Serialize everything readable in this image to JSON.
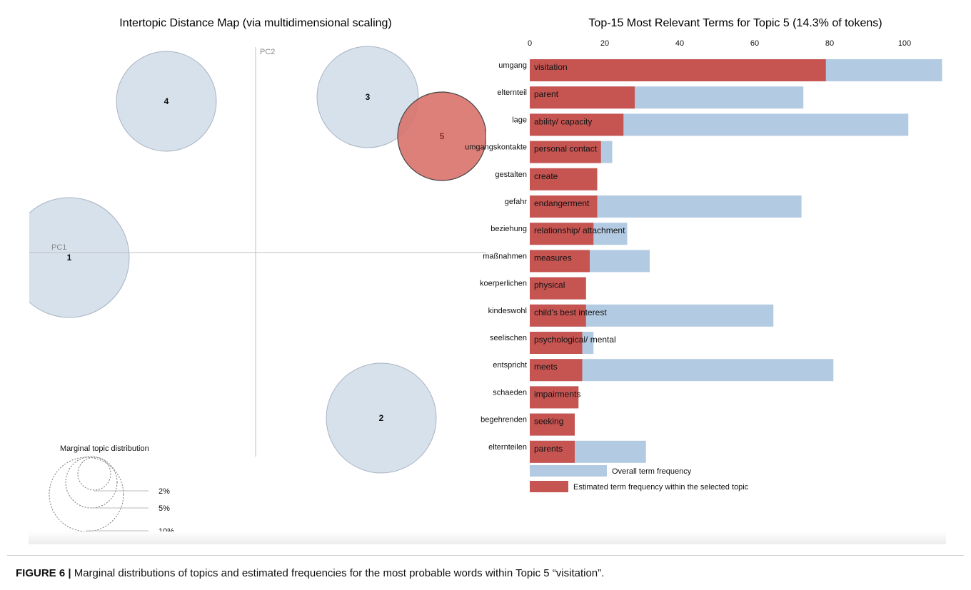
{
  "left_title": "Intertopic Distance Map (via multidimensional scaling)",
  "right_title": "Top-15 Most Relevant Terms for Topic 5 (14.3% of tokens)",
  "axes": {
    "pc1": "PC1",
    "pc2": "PC2"
  },
  "topics": [
    {
      "id": "1",
      "selected": false
    },
    {
      "id": "2",
      "selected": false
    },
    {
      "id": "3",
      "selected": false
    },
    {
      "id": "4",
      "selected": false
    },
    {
      "id": "5",
      "selected": true
    }
  ],
  "marginal": {
    "title": "Marginal topic distribution",
    "labels": [
      "2%",
      "5%",
      "10%"
    ]
  },
  "legend": {
    "overall": "Overall term frequency",
    "topic": "Estimated term frequency within the selected topic"
  },
  "colors": {
    "overall": "#b3cbe2",
    "topic": "#c65552",
    "bubble": "#d3deea",
    "selected_bubble": "#d9726c"
  },
  "caption": {
    "label": "FIGURE 6 |",
    "text": " Marginal distributions of topics and estimated frequencies for the most probable words within Topic 5 “visitation”."
  },
  "chart_data": {
    "type": "bar",
    "orientation": "horizontal",
    "title": "Top-15 Most Relevant Terms for Topic 5 (14.3% of tokens)",
    "xlim": [
      0,
      110
    ],
    "xticks": [
      0,
      20,
      40,
      60,
      80,
      100
    ],
    "categories": [
      "umgang",
      "elternteil",
      "lage",
      "umgangskontakte",
      "gestalten",
      "gefahr",
      "beziehung",
      "maßnahmen",
      "koerperlichen",
      "kindeswohl",
      "seelischen",
      "entspricht",
      "schaeden",
      "begehrenden",
      "elternteilen"
    ],
    "translations": [
      "visitation",
      "parent",
      "ability/ capacity",
      "personal contact",
      "create",
      "endangerment",
      "relationship/ attachment",
      "measures",
      "physical",
      "child's best interest",
      "psychological/ mental",
      "meets",
      "impairments",
      "seeking",
      "parents"
    ],
    "series": [
      {
        "name": "Overall term frequency",
        "values": [
          110,
          73,
          101,
          22,
          18,
          72.5,
          26,
          32,
          15,
          65,
          17,
          81,
          13,
          12,
          31
        ]
      },
      {
        "name": "Estimated term frequency within the selected topic",
        "values": [
          79,
          28,
          25,
          19,
          18,
          18,
          17,
          16,
          15,
          15,
          14,
          14,
          13,
          12,
          12
        ]
      }
    ]
  }
}
